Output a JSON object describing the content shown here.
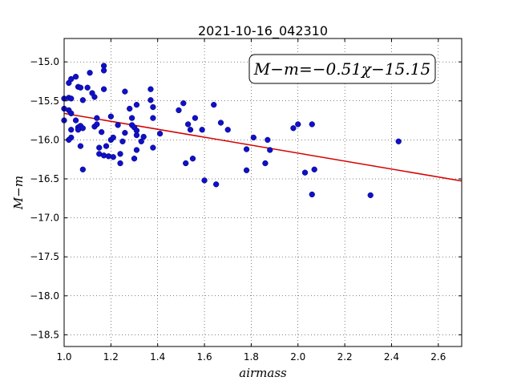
{
  "chart_data": {
    "type": "scatter",
    "title": "2021-10-16_042310",
    "xlabel": "airmass",
    "ylabel": "M−m",
    "xlim": [
      1.0,
      2.7
    ],
    "ylim": [
      -15.3,
      -21.0
    ],
    "y_display_range": [
      -14.7,
      -18.65
    ],
    "grid": true,
    "xticks": [
      "1.0",
      "1.2",
      "1.4",
      "1.6",
      "1.8",
      "2.0",
      "2.2",
      "2.4",
      "2.6"
    ],
    "yticks": [
      "−15.0",
      "−15.5",
      "−16.0",
      "−16.5",
      "−17.0",
      "−17.5",
      "−18.0",
      "−18.5"
    ],
    "annotation": "M−m=−0.51χ−15.15",
    "fit": {
      "slope": -0.51,
      "intercept": -15.15,
      "color": "#d40000"
    },
    "marker_color": "#1010c8",
    "points": [
      [
        1.0,
        -15.47
      ],
      [
        1.0,
        -15.6
      ],
      [
        1.0,
        -15.75
      ],
      [
        1.02,
        -15.27
      ],
      [
        1.03,
        -15.22
      ],
      [
        1.02,
        -15.46
      ],
      [
        1.03,
        -15.47
      ],
      [
        1.02,
        -15.62
      ],
      [
        1.03,
        -15.66
      ],
      [
        1.03,
        -15.87
      ],
      [
        1.03,
        -15.97
      ],
      [
        1.02,
        -16.0
      ],
      [
        1.05,
        -15.19
      ],
      [
        1.05,
        -15.75
      ],
      [
        1.06,
        -15.32
      ],
      [
        1.07,
        -15.33
      ],
      [
        1.06,
        -15.84
      ],
      [
        1.07,
        -15.82
      ],
      [
        1.08,
        -15.85
      ],
      [
        1.08,
        -15.49
      ],
      [
        1.06,
        -15.87
      ],
      [
        1.07,
        -16.08
      ],
      [
        1.08,
        -16.38
      ],
      [
        1.1,
        -15.33
      ],
      [
        1.11,
        -15.14
      ],
      [
        1.12,
        -15.4
      ],
      [
        1.13,
        -15.45
      ],
      [
        1.13,
        -15.83
      ],
      [
        1.14,
        -15.8
      ],
      [
        1.14,
        -15.72
      ],
      [
        1.15,
        -16.1
      ],
      [
        1.15,
        -16.18
      ],
      [
        1.16,
        -15.9
      ],
      [
        1.17,
        -15.05
      ],
      [
        1.17,
        -15.11
      ],
      [
        1.17,
        -15.35
      ],
      [
        1.17,
        -16.2
      ],
      [
        1.18,
        -16.08
      ],
      [
        1.19,
        -16.21
      ],
      [
        1.2,
        -15.7
      ],
      [
        1.2,
        -16.0
      ],
      [
        1.21,
        -15.97
      ],
      [
        1.21,
        -16.22
      ],
      [
        1.23,
        -15.81
      ],
      [
        1.24,
        -16.18
      ],
      [
        1.24,
        -16.3
      ],
      [
        1.25,
        -16.02
      ],
      [
        1.26,
        -15.38
      ],
      [
        1.26,
        -15.91
      ],
      [
        1.28,
        -15.6
      ],
      [
        1.29,
        -15.81
      ],
      [
        1.29,
        -15.72
      ],
      [
        1.3,
        -15.84
      ],
      [
        1.3,
        -16.24
      ],
      [
        1.31,
        -15.55
      ],
      [
        1.31,
        -15.88
      ],
      [
        1.31,
        -15.94
      ],
      [
        1.31,
        -16.13
      ],
      [
        1.33,
        -16.02
      ],
      [
        1.34,
        -15.96
      ],
      [
        1.37,
        -15.35
      ],
      [
        1.37,
        -15.49
      ],
      [
        1.38,
        -15.58
      ],
      [
        1.38,
        -15.72
      ],
      [
        1.38,
        -16.1
      ],
      [
        1.41,
        -15.92
      ],
      [
        1.49,
        -15.62
      ],
      [
        1.51,
        -15.53
      ],
      [
        1.52,
        -16.3
      ],
      [
        1.53,
        -15.8
      ],
      [
        1.54,
        -15.87
      ],
      [
        1.55,
        -16.24
      ],
      [
        1.56,
        -15.72
      ],
      [
        1.59,
        -15.87
      ],
      [
        1.6,
        -16.52
      ],
      [
        1.64,
        -15.55
      ],
      [
        1.65,
        -16.57
      ],
      [
        1.67,
        -15.78
      ],
      [
        1.7,
        -15.87
      ],
      [
        1.78,
        -16.12
      ],
      [
        1.78,
        -16.39
      ],
      [
        1.81,
        -15.97
      ],
      [
        1.86,
        -16.3
      ],
      [
        1.87,
        -16.0
      ],
      [
        1.88,
        -16.13
      ],
      [
        1.98,
        -15.85
      ],
      [
        2.0,
        -15.8
      ],
      [
        2.03,
        -16.42
      ],
      [
        2.06,
        -16.7
      ],
      [
        2.06,
        -15.8
      ],
      [
        2.07,
        -16.38
      ],
      [
        2.31,
        -16.71
      ],
      [
        2.43,
        -16.02
      ]
    ]
  }
}
